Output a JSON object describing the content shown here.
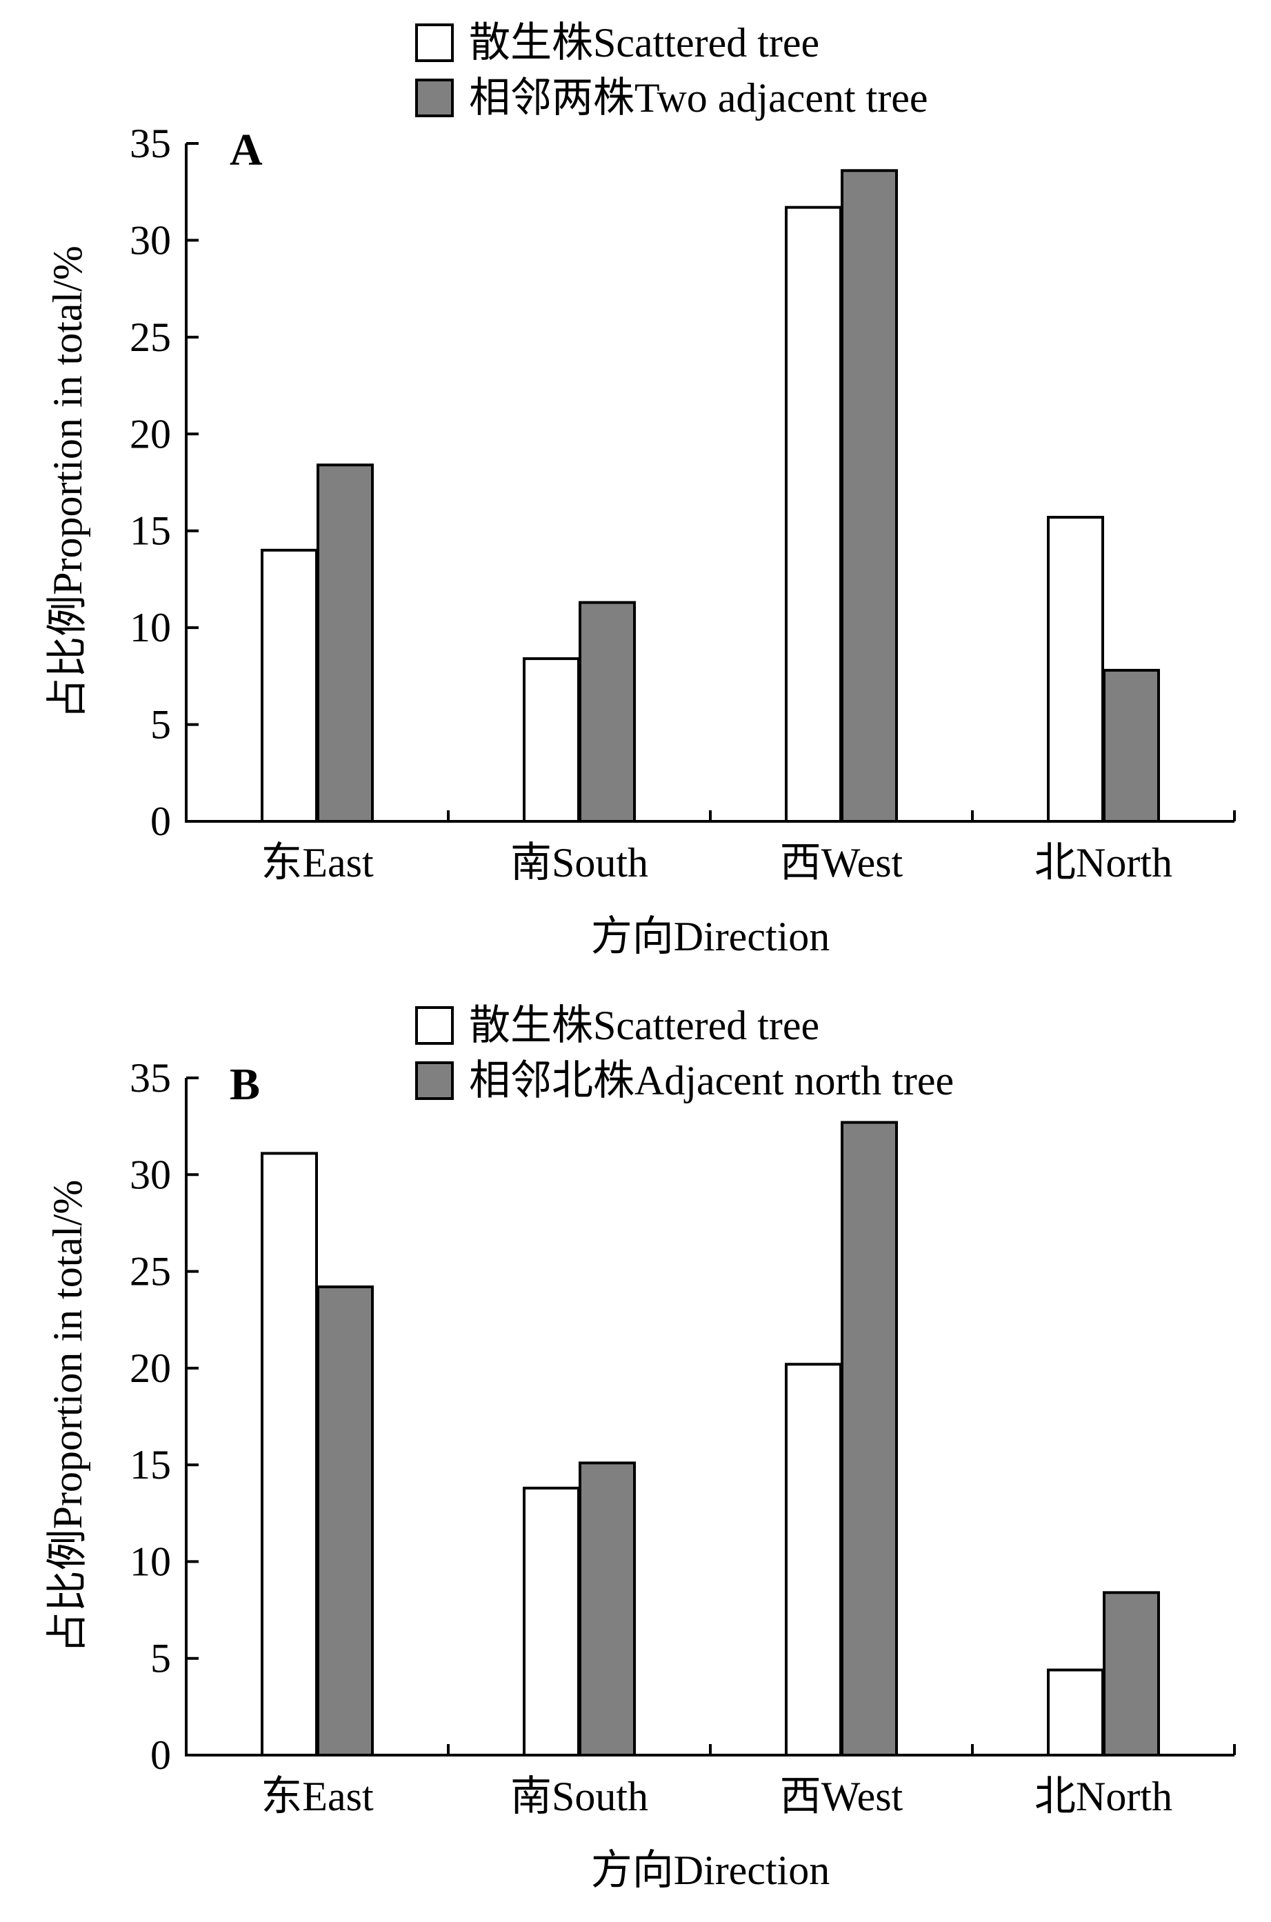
{
  "colors": {
    "series1_fill": "#ffffff",
    "series2_fill": "#808080",
    "stroke": "#000000"
  },
  "chart_data": [
    {
      "type": "bar",
      "panel_label": "A",
      "categories": [
        "东East",
        "南South",
        "西West",
        "北North"
      ],
      "xlabel": "方向Direction",
      "ylabel": "占比例Proportion in total/%",
      "ylim": [
        0,
        35
      ],
      "yticks": [
        0,
        5,
        10,
        15,
        20,
        25,
        30,
        35
      ],
      "legend_position": "top-center",
      "series": [
        {
          "name": "散生株Scattered tree",
          "values": [
            14.0,
            8.4,
            31.7,
            15.7
          ]
        },
        {
          "name": "相邻两株Two adjacent tree",
          "values": [
            18.4,
            11.3,
            33.6,
            7.8
          ]
        }
      ]
    },
    {
      "type": "bar",
      "panel_label": "B",
      "categories": [
        "东East",
        "南South",
        "西West",
        "北North"
      ],
      "xlabel": "方向Direction",
      "ylabel": "占比例Proportion in total/%",
      "ylim": [
        0,
        35
      ],
      "yticks": [
        0,
        5,
        10,
        15,
        20,
        25,
        30,
        35
      ],
      "legend_position": "top-center",
      "series": [
        {
          "name": "散生株Scattered tree",
          "values": [
            31.1,
            13.8,
            20.2,
            4.4
          ]
        },
        {
          "name": "相邻北株Adjacent north tree",
          "values": [
            24.2,
            15.1,
            32.7,
            8.4
          ]
        }
      ]
    }
  ]
}
